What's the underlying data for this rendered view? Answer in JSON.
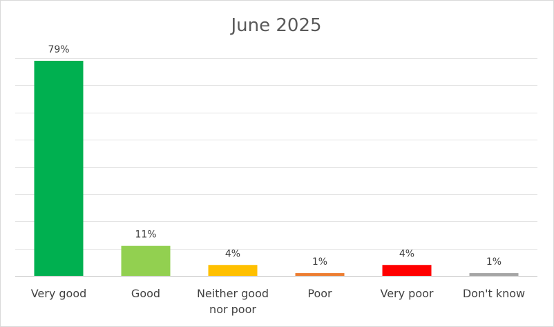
{
  "chart_data": {
    "type": "bar",
    "title": "June 2025",
    "xlabel": "",
    "ylabel": "",
    "categories": [
      "Very good",
      "Good",
      "Neither good nor poor",
      "Poor",
      "Very poor",
      "Don't know"
    ],
    "category_lines": [
      [
        "Very good"
      ],
      [
        "Good"
      ],
      [
        "Neither good",
        "nor poor"
      ],
      [
        "Poor"
      ],
      [
        "Very poor"
      ],
      [
        "Don't know"
      ]
    ],
    "values": [
      79,
      11,
      4,
      1,
      4,
      1
    ],
    "data_labels": [
      "79%",
      "11%",
      "4%",
      "1%",
      "4%",
      "1%"
    ],
    "colors": [
      "#00b050",
      "#92d050",
      "#ffc000",
      "#ed7d31",
      "#ff0000",
      "#a5a5a5"
    ],
    "ylim": [
      0,
      80
    ],
    "grid": true,
    "legend": "none"
  }
}
